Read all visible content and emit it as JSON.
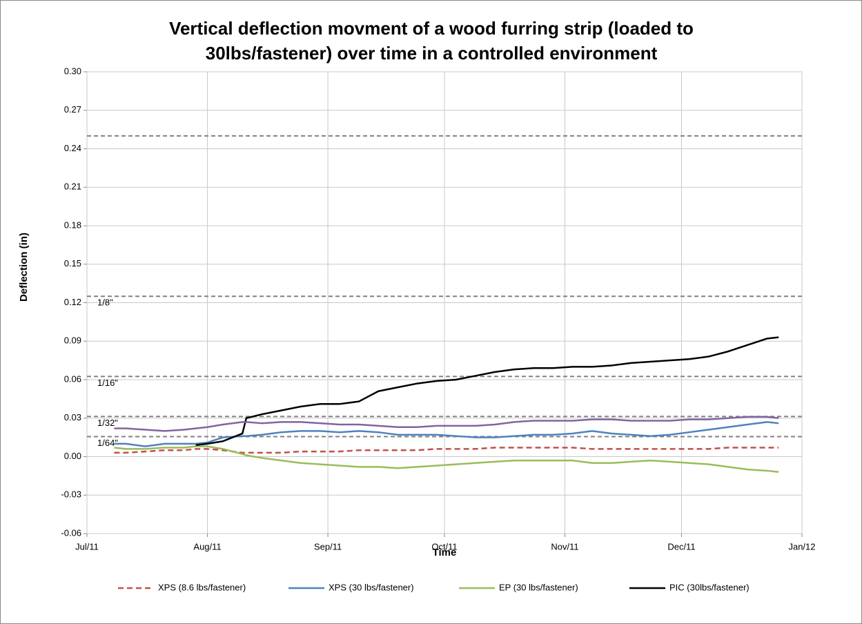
{
  "chart_data": {
    "type": "line",
    "title": "Vertical deflection movment of a wood furring strip (loaded to 30lbs/fastener) over time in a controlled environment",
    "xlabel": "Time",
    "ylabel": "Deflection (in)",
    "x": [
      7,
      10,
      15,
      20,
      25,
      28,
      31,
      35,
      40,
      41,
      45,
      50,
      55,
      60,
      65,
      70,
      75,
      80,
      85,
      90,
      95,
      100,
      105,
      110,
      115,
      120,
      125,
      130,
      135,
      140,
      145,
      150,
      155,
      160,
      165,
      170,
      175,
      178
    ],
    "xlim": [
      0,
      184
    ],
    "xticks": [
      {
        "value": 0,
        "label": "Jul/11"
      },
      {
        "value": 31,
        "label": "Aug/11"
      },
      {
        "value": 62,
        "label": "Sep/11"
      },
      {
        "value": 92,
        "label": "Oct/11"
      },
      {
        "value": 123,
        "label": "Nov/11"
      },
      {
        "value": 153,
        "label": "Dec/11"
      },
      {
        "value": 184,
        "label": "Jan/12"
      }
    ],
    "ylim": [
      -0.06,
      0.3
    ],
    "yticks": [
      {
        "value": 0.3,
        "label": "0.30"
      },
      {
        "value": 0.27,
        "label": "0.27"
      },
      {
        "value": 0.24,
        "label": "0.24"
      },
      {
        "value": 0.21,
        "label": "0.21"
      },
      {
        "value": 0.18,
        "label": "0.18"
      },
      {
        "value": 0.15,
        "label": "0.15"
      },
      {
        "value": 0.12,
        "label": "0.12"
      },
      {
        "value": 0.09,
        "label": "0.09"
      },
      {
        "value": 0.06,
        "label": "0.06"
      },
      {
        "value": 0.03,
        "label": "0.03"
      },
      {
        "value": 0,
        "label": "0.00"
      },
      {
        "value": -0.03,
        "label": "-0.03"
      },
      {
        "value": -0.06,
        "label": "-0.06"
      }
    ],
    "grid": true,
    "legend": "bottom",
    "reference_lines": [
      {
        "value": 0.25
      },
      {
        "value": 0.125,
        "label": "1/8\""
      },
      {
        "value": 0.0625,
        "label": "1/16\""
      },
      {
        "value": 0.03125,
        "label": "1/32\""
      },
      {
        "value": 0.015625,
        "label": "1/64\""
      }
    ],
    "series": [
      {
        "name": "XPS (8.6 lbs/fastener)",
        "color": "#c0504d",
        "linestyle": "dashed",
        "values": [
          0.003,
          0.003,
          0.004,
          0.005,
          0.005,
          0.006,
          0.006,
          0.005,
          0.003,
          0.003,
          0.003,
          0.003,
          0.004,
          0.004,
          0.004,
          0.005,
          0.005,
          0.005,
          0.005,
          0.006,
          0.006,
          0.006,
          0.007,
          0.007,
          0.007,
          0.007,
          0.007,
          0.006,
          0.006,
          0.006,
          0.006,
          0.006,
          0.006,
          0.006,
          0.007,
          0.007,
          0.007,
          0.007
        ]
      },
      {
        "name": "XPS (30 lbs/fastener)",
        "color": "#4f81bd",
        "linestyle": "solid",
        "values": [
          0.01,
          0.01,
          0.008,
          0.01,
          0.01,
          0.01,
          0.011,
          0.015,
          0.016,
          0.016,
          0.017,
          0.019,
          0.02,
          0.02,
          0.019,
          0.02,
          0.019,
          0.017,
          0.017,
          0.017,
          0.016,
          0.015,
          0.015,
          0.016,
          0.017,
          0.017,
          0.018,
          0.02,
          0.018,
          0.017,
          0.016,
          0.017,
          0.019,
          0.021,
          0.023,
          0.025,
          0.027,
          0.026
        ]
      },
      {
        "name": "EP (30 lbs/fastener)",
        "color": "#9bbb59",
        "linestyle": "solid",
        "values": [
          0.007,
          0.006,
          0.006,
          0.007,
          0.007,
          0.008,
          0.008,
          0.006,
          0.002,
          0.001,
          -0.001,
          -0.003,
          -0.005,
          -0.006,
          -0.007,
          -0.008,
          -0.008,
          -0.009,
          -0.008,
          -0.007,
          -0.006,
          -0.005,
          -0.004,
          -0.003,
          -0.003,
          -0.003,
          -0.003,
          -0.005,
          -0.005,
          -0.004,
          -0.003,
          -0.004,
          -0.005,
          -0.006,
          -0.008,
          -0.01,
          -0.011,
          -0.012
        ]
      },
      {
        "name": "PIC (30lbs/fastener)",
        "color": "#000000",
        "linestyle": "solid",
        "values": [
          null,
          null,
          null,
          null,
          null,
          0.009,
          0.01,
          0.012,
          0.018,
          0.03,
          0.033,
          0.036,
          0.039,
          0.041,
          0.041,
          0.043,
          0.051,
          0.054,
          0.057,
          0.059,
          0.06,
          0.063,
          0.066,
          0.068,
          0.069,
          0.069,
          0.07,
          0.07,
          0.071,
          0.073,
          0.074,
          0.075,
          0.076,
          0.078,
          0.082,
          0.087,
          0.092,
          0.093
        ]
      },
      {
        "color": "#8064a2",
        "linestyle": "solid",
        "values": [
          0.022,
          0.022,
          0.021,
          0.02,
          0.021,
          0.022,
          0.023,
          0.025,
          0.027,
          0.027,
          0.026,
          0.027,
          0.027,
          0.026,
          0.025,
          0.025,
          0.024,
          0.023,
          0.023,
          0.024,
          0.024,
          0.024,
          0.025,
          0.027,
          0.028,
          0.028,
          0.028,
          0.029,
          0.029,
          0.028,
          0.028,
          0.028,
          0.029,
          0.029,
          0.03,
          0.031,
          0.031,
          0.03
        ]
      }
    ]
  }
}
